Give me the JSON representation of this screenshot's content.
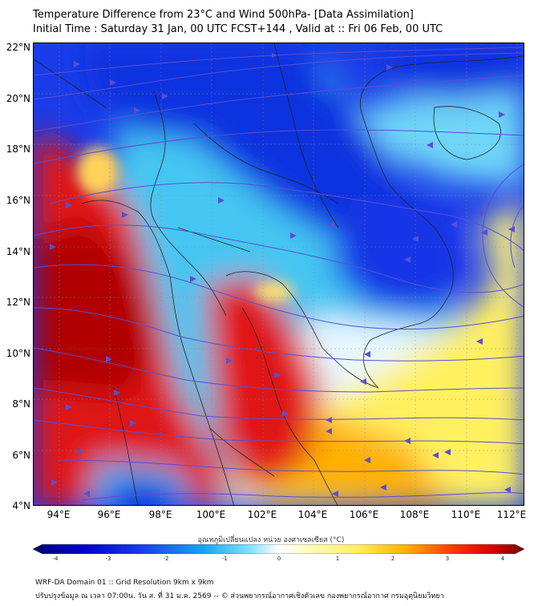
{
  "header": {
    "title_line1": "Temperature Difference from 23°C and Wind 500hPa- [Data Assimilation]",
    "title_line2": "Initial Time : Saturday 31 Jan, 00 UTC FCST+144 , Valid at ::  Fri 06 Feb, 00 UTC"
  },
  "map": {
    "latitude_labels": [
      "22°N",
      "20°N",
      "18°N",
      "16°N",
      "14°N",
      "12°N",
      "10°N",
      "8°N",
      "6°N",
      "4°N"
    ],
    "longitude_labels": [
      "94°E",
      "96°E",
      "98°E",
      "100°E",
      "102°E",
      "104°E",
      "106°E",
      "108°E",
      "110°E",
      "112°E"
    ],
    "colors": {
      "deep_blue": "#1030e0",
      "light_blue": "#40c8f0",
      "pale": "#e8f8ff",
      "yellow": "#fff060",
      "orange": "#ffb000",
      "red": "#e01010",
      "dark_red": "#b00000",
      "streamline": "#5a4fd0",
      "border": "#222222"
    }
  },
  "colorbar": {
    "title": "อุณหภูมิเปลี่ยนแปลง หน่วย องศาเซลเซียส (°C)",
    "tick_labels": [
      "-4",
      "-3",
      "-2",
      "-1",
      "0",
      "1",
      "2",
      "3",
      "4"
    ]
  },
  "footer": {
    "line1": "WRF-DA Domain 01 :: Grid Resolution 9km x 9km",
    "line2": "ปรับปรุงข้อมูล ณ เวลา 07:00น. วัน ส. ที่ 31 ม.ค. 2569 -- © ส่วนพยากรณ์อากาศเชิงตัวเลข กองพยากรณ์อากาศ กรมอุตุนิยมวิทยา"
  }
}
